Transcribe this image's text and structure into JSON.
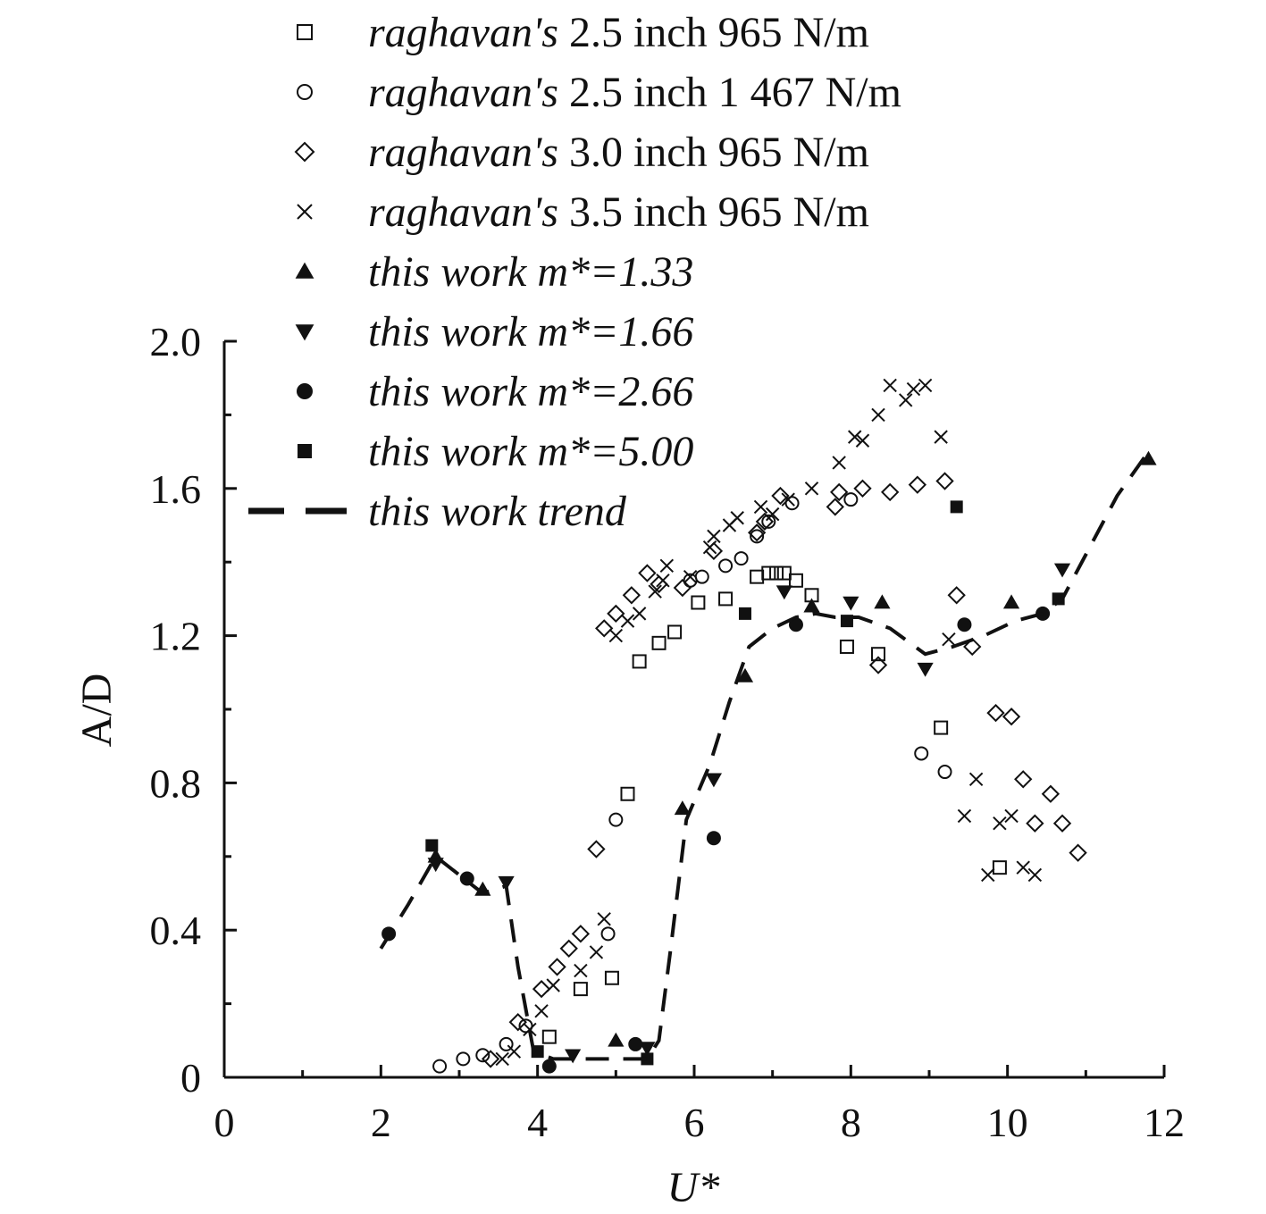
{
  "chart_data": {
    "type": "scatter",
    "title": "",
    "xlabel": "U*",
    "ylabel": "A/D",
    "xlim": [
      0,
      12
    ],
    "ylim": [
      0,
      2.0
    ],
    "xticks": [
      0,
      2,
      4,
      6,
      8,
      10,
      12
    ],
    "xtick_labels": [
      "0",
      "2",
      "4",
      "6",
      "8",
      "10",
      "12"
    ],
    "yticks": [
      0,
      0.4,
      0.8,
      1.2,
      1.6,
      2.0
    ],
    "ytick_labels": [
      "0",
      "0.4",
      "0.8",
      "1.2",
      "1.6",
      "2.0"
    ],
    "grid": false,
    "legend_placement": "top",
    "series": [
      {
        "legend_italic": "raghavan's",
        "legend_rest": " 2.5 inch 965 N/m",
        "marker": "square-open",
        "points": [
          [
            4.15,
            0.11
          ],
          [
            4.55,
            0.24
          ],
          [
            4.95,
            0.27
          ],
          [
            5.15,
            0.77
          ],
          [
            5.3,
            1.13
          ],
          [
            5.55,
            1.18
          ],
          [
            5.75,
            1.21
          ],
          [
            6.05,
            1.29
          ],
          [
            6.4,
            1.3
          ],
          [
            6.8,
            1.36
          ],
          [
            6.95,
            1.37
          ],
          [
            7.05,
            1.37
          ],
          [
            7.15,
            1.37
          ],
          [
            7.3,
            1.35
          ],
          [
            7.5,
            1.31
          ],
          [
            7.95,
            1.17
          ],
          [
            8.35,
            1.15
          ],
          [
            9.15,
            0.95
          ],
          [
            9.9,
            0.57
          ]
        ]
      },
      {
        "legend_italic": "raghavan's",
        "legend_rest": " 2.5 inch 1 467 N/m",
        "marker": "circle-open",
        "points": [
          [
            2.75,
            0.03
          ],
          [
            3.05,
            0.05
          ],
          [
            3.3,
            0.06
          ],
          [
            3.6,
            0.09
          ],
          [
            3.85,
            0.14
          ],
          [
            4.9,
            0.39
          ],
          [
            5.0,
            0.7
          ],
          [
            5.95,
            1.35
          ],
          [
            6.1,
            1.36
          ],
          [
            6.4,
            1.39
          ],
          [
            6.6,
            1.41
          ],
          [
            6.8,
            1.47
          ],
          [
            6.95,
            1.51
          ],
          [
            7.25,
            1.56
          ],
          [
            8.0,
            1.57
          ],
          [
            8.9,
            0.88
          ],
          [
            9.2,
            0.83
          ]
        ]
      },
      {
        "legend_italic": "raghavan's",
        "legend_rest": " 3.0 inch 965 N/m",
        "marker": "diamond-open",
        "points": [
          [
            3.4,
            0.05
          ],
          [
            3.75,
            0.15
          ],
          [
            4.05,
            0.24
          ],
          [
            4.25,
            0.3
          ],
          [
            4.4,
            0.35
          ],
          [
            4.55,
            0.39
          ],
          [
            4.75,
            0.62
          ],
          [
            4.85,
            1.22
          ],
          [
            5.0,
            1.26
          ],
          [
            5.2,
            1.31
          ],
          [
            5.4,
            1.37
          ],
          [
            5.55,
            1.34
          ],
          [
            5.85,
            1.33
          ],
          [
            6.25,
            1.43
          ],
          [
            6.8,
            1.48
          ],
          [
            6.9,
            1.51
          ],
          [
            7.1,
            1.58
          ],
          [
            7.8,
            1.55
          ],
          [
            7.85,
            1.59
          ],
          [
            8.15,
            1.6
          ],
          [
            8.5,
            1.59
          ],
          [
            8.85,
            1.61
          ],
          [
            9.2,
            1.62
          ],
          [
            9.35,
            1.31
          ],
          [
            9.55,
            1.17
          ],
          [
            9.85,
            0.99
          ],
          [
            10.05,
            0.98
          ],
          [
            10.2,
            0.81
          ],
          [
            10.35,
            0.69
          ],
          [
            10.55,
            0.77
          ],
          [
            10.7,
            0.69
          ],
          [
            10.9,
            0.61
          ],
          [
            8.35,
            1.12
          ]
        ]
      },
      {
        "legend_italic": "raghavan's",
        "legend_rest": " 3.5 inch 965 N/m",
        "marker": "x",
        "points": [
          [
            3.55,
            0.05
          ],
          [
            3.7,
            0.07
          ],
          [
            3.9,
            0.13
          ],
          [
            4.05,
            0.18
          ],
          [
            4.2,
            0.25
          ],
          [
            4.55,
            0.29
          ],
          [
            4.75,
            0.34
          ],
          [
            4.85,
            0.43
          ],
          [
            5.0,
            1.2
          ],
          [
            5.15,
            1.24
          ],
          [
            5.3,
            1.26
          ],
          [
            5.5,
            1.32
          ],
          [
            5.6,
            1.35
          ],
          [
            5.65,
            1.39
          ],
          [
            5.95,
            1.36
          ],
          [
            6.2,
            1.44
          ],
          [
            6.25,
            1.47
          ],
          [
            6.45,
            1.5
          ],
          [
            6.55,
            1.52
          ],
          [
            6.85,
            1.55
          ],
          [
            7.0,
            1.53
          ],
          [
            7.2,
            1.57
          ],
          [
            7.5,
            1.6
          ],
          [
            7.85,
            1.67
          ],
          [
            8.05,
            1.74
          ],
          [
            8.15,
            1.73
          ],
          [
            8.35,
            1.8
          ],
          [
            8.5,
            1.88
          ],
          [
            8.7,
            1.84
          ],
          [
            8.8,
            1.87
          ],
          [
            8.95,
            1.88
          ],
          [
            9.15,
            1.74
          ],
          [
            9.25,
            1.19
          ],
          [
            9.45,
            0.71
          ],
          [
            9.6,
            0.81
          ],
          [
            9.75,
            0.55
          ],
          [
            9.9,
            0.69
          ],
          [
            10.05,
            0.71
          ],
          [
            10.2,
            0.57
          ],
          [
            10.35,
            0.55
          ]
        ]
      },
      {
        "legend_italic": "this work",
        "legend_rest": " m*=1.33",
        "marker": "triangle-up-filled",
        "points": [
          [
            2.7,
            0.6
          ],
          [
            3.3,
            0.51
          ],
          [
            5.0,
            0.1
          ],
          [
            5.85,
            0.73
          ],
          [
            6.65,
            1.09
          ],
          [
            7.5,
            1.28
          ],
          [
            8.4,
            1.29
          ],
          [
            10.05,
            1.29
          ],
          [
            11.8,
            1.68
          ]
        ]
      },
      {
        "legend_italic": "this work",
        "legend_rest": " m*=1.66",
        "marker": "triangle-down-filled",
        "points": [
          [
            2.7,
            0.58
          ],
          [
            3.6,
            0.53
          ],
          [
            4.45,
            0.06
          ],
          [
            5.4,
            0.08
          ],
          [
            6.25,
            0.81
          ],
          [
            7.15,
            1.32
          ],
          [
            8.0,
            1.29
          ],
          [
            8.95,
            1.11
          ],
          [
            10.7,
            1.38
          ]
        ]
      },
      {
        "legend_italic": "this work",
        "legend_rest": " m*=2.66",
        "marker": "circle-filled",
        "points": [
          [
            2.1,
            0.39
          ],
          [
            3.1,
            0.54
          ],
          [
            4.15,
            0.03
          ],
          [
            5.25,
            0.09
          ],
          [
            6.25,
            0.65
          ],
          [
            7.3,
            1.23
          ],
          [
            9.45,
            1.23
          ],
          [
            10.45,
            1.26
          ]
        ]
      },
      {
        "legend_italic": "this work",
        "legend_rest": " m*=5.00",
        "marker": "square-filled",
        "points": [
          [
            2.65,
            0.63
          ],
          [
            4.0,
            0.07
          ],
          [
            5.4,
            0.05
          ],
          [
            6.65,
            1.26
          ],
          [
            7.95,
            1.24
          ],
          [
            9.35,
            1.55
          ],
          [
            10.65,
            1.3
          ]
        ]
      },
      {
        "legend_italic": "this work trend",
        "legend_rest": "",
        "marker": "dashed-line",
        "points": [
          [
            2.0,
            0.35
          ],
          [
            2.35,
            0.47
          ],
          [
            2.7,
            0.6
          ],
          [
            3.0,
            0.55
          ],
          [
            3.3,
            0.5
          ],
          [
            3.6,
            0.52
          ],
          [
            3.75,
            0.3
          ],
          [
            3.95,
            0.07
          ],
          [
            4.2,
            0.05
          ],
          [
            4.5,
            0.05
          ],
          [
            5.0,
            0.05
          ],
          [
            5.4,
            0.05
          ],
          [
            5.55,
            0.1
          ],
          [
            5.7,
            0.35
          ],
          [
            5.9,
            0.7
          ],
          [
            6.2,
            0.85
          ],
          [
            6.45,
            1.02
          ],
          [
            6.7,
            1.17
          ],
          [
            7.0,
            1.22
          ],
          [
            7.3,
            1.25
          ],
          [
            7.55,
            1.26
          ],
          [
            7.8,
            1.25
          ],
          [
            8.1,
            1.25
          ],
          [
            8.5,
            1.22
          ],
          [
            8.95,
            1.15
          ],
          [
            9.3,
            1.17
          ],
          [
            9.7,
            1.2
          ],
          [
            10.1,
            1.24
          ],
          [
            10.45,
            1.26
          ],
          [
            10.7,
            1.3
          ],
          [
            11.0,
            1.42
          ],
          [
            11.4,
            1.58
          ],
          [
            11.8,
            1.7
          ]
        ]
      }
    ]
  }
}
